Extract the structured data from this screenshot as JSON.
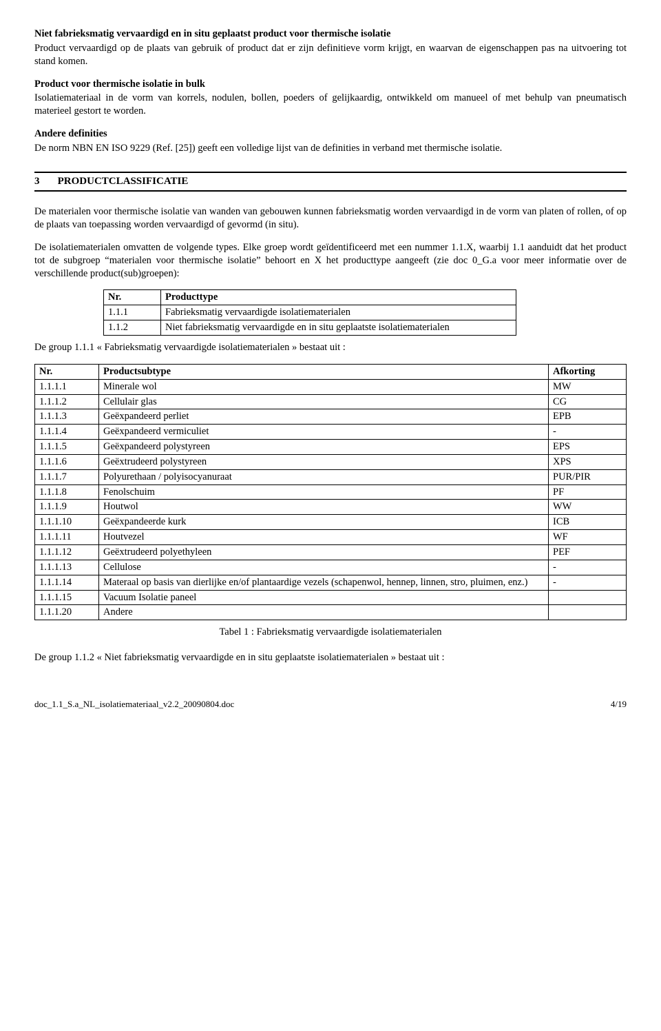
{
  "defs": {
    "d1_title": "Niet fabrieksmatig vervaardigd en in situ geplaatst product voor thermische isolatie",
    "d1_body": "Product vervaardigd op de plaats van gebruik of product dat er zijn definitieve vorm krijgt, en waarvan de eigenschappen pas na uitvoering tot stand komen.",
    "d2_title": "Product voor thermische isolatie in bulk",
    "d2_body": "Isolatiemateriaal in de vorm van korrels, nodulen, bollen, poeders of gelijkaardig, ontwikkeld om manueel of met behulp van pneumatisch materieel gestort te worden.",
    "d3_title": "Andere definities",
    "d3_body": "De norm NBN EN ISO 9229 (Ref. [25]) geeft een volledige lijst van de definities in verband met thermische isolatie."
  },
  "section": {
    "num": "3",
    "title": "PRODUCTCLASSIFICATIE"
  },
  "body": {
    "p1": "De materialen voor thermische isolatie van wanden van gebouwen kunnen fabrieksmatig worden vervaardigd in de vorm van platen of rollen, of op de plaats van toepassing worden vervaardigd of gevormd (in situ).",
    "p2": "De isolatiematerialen omvatten de volgende types. Elke groep wordt geïdentificeerd met een nummer 1.1.X, waarbij 1.1 aanduidt dat het product tot de subgroep “materialen voor thermische isolatie” behoort en X het producttype aangeeft (zie doc 0_G.a voor meer informatie over de verschillende product(sub)groepen):"
  },
  "table1": {
    "h_nr": "Nr.",
    "h_type": "Producttype",
    "rows": [
      {
        "nr": "1.1.1",
        "type": "Fabrieksmatig vervaardigde isolatiematerialen"
      },
      {
        "nr": "1.1.2",
        "type": "Niet fabrieksmatig vervaardigde en in situ geplaatste isolatiematerialen"
      }
    ]
  },
  "mid_line": "De group 1.1.1 « Fabrieksmatig vervaardigde isolatiematerialen » bestaat uit :",
  "table2": {
    "h_nr": "Nr.",
    "h_sub": "Productsubtype",
    "h_abbr": "Afkorting",
    "rows": [
      {
        "nr": "1.1.1.1",
        "sub": "Minerale wol",
        "abbr": "MW"
      },
      {
        "nr": "1.1.1.2",
        "sub": "Cellulair glas",
        "abbr": "CG"
      },
      {
        "nr": "1.1.1.3",
        "sub": "Geëxpandeerd perliet",
        "abbr": "EPB"
      },
      {
        "nr": "1.1.1.4",
        "sub": "Geëxpandeerd vermiculiet",
        "abbr": "-"
      },
      {
        "nr": "1.1.1.5",
        "sub": "Geëxpandeerd polystyreen",
        "abbr": "EPS"
      },
      {
        "nr": "1.1.1.6",
        "sub": "Geëxtrudeerd polystyreen",
        "abbr": "XPS"
      },
      {
        "nr": "1.1.1.7",
        "sub": "Polyurethaan / polyisocyanuraat",
        "abbr": "PUR/PIR"
      },
      {
        "nr": "1.1.1.8",
        "sub": "Fenolschuim",
        "abbr": "PF"
      },
      {
        "nr": "1.1.1.9",
        "sub": "Houtwol",
        "abbr": "WW"
      },
      {
        "nr": "1.1.1.10",
        "sub": "Geëxpandeerde kurk",
        "abbr": "ICB"
      },
      {
        "nr": "1.1.1.11",
        "sub": "Houtvezel",
        "abbr": "WF"
      },
      {
        "nr": "1.1.1.12",
        "sub": "Geëxtrudeerd polyethyleen",
        "abbr": "PEF"
      },
      {
        "nr": "1.1.1.13",
        "sub": "Cellulose",
        "abbr": "-"
      },
      {
        "nr": "1.1.1.14",
        "sub": "Materaal op basis van dierlijke en/of plantaardige vezels (schapenwol, hennep, linnen, stro, pluimen, enz.)",
        "abbr": "-"
      },
      {
        "nr": "1.1.1.15",
        "sub": "Vacuum Isolatie paneel",
        "abbr": ""
      },
      {
        "nr": "1.1.1.20",
        "sub": "Andere",
        "abbr": ""
      }
    ]
  },
  "caption": "Tabel 1 : Fabrieksmatig vervaardigde isolatiematerialen",
  "end_line": "De group 1.1.2 « Niet fabrieksmatig vervaardigde en in situ geplaatste isolatiematerialen » bestaat uit :",
  "footer": {
    "left": "doc_1.1_S.a_NL_isolatiemateriaal_v2.2_20090804.doc",
    "right": "4/19"
  }
}
